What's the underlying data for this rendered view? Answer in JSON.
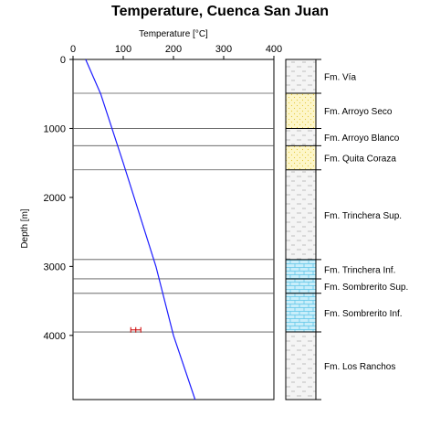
{
  "chart_data": {
    "type": "line",
    "title": "Temperature, Cuenca San Juan",
    "xlabel": "Temperature [°C]",
    "ylabel": "Depth [m]",
    "xlim": [
      0,
      400
    ],
    "ylim": [
      0,
      4930
    ],
    "x_ticks": [
      0,
      100,
      200,
      300,
      400
    ],
    "y_ticks": [
      0,
      1000,
      2000,
      3000,
      4000
    ],
    "series": [
      {
        "type": "line",
        "color": "#1c1cff",
        "points": [
          {
            "x": 25,
            "depth": 0
          },
          {
            "x": 55,
            "depth": 500
          },
          {
            "x": 100,
            "depth": 1500
          },
          {
            "x": 165,
            "depth": 3000
          },
          {
            "x": 200,
            "depth": 4000
          },
          {
            "x": 243,
            "depth": 4930
          }
        ]
      },
      {
        "type": "measurement",
        "color": "#cc0000",
        "points": [
          {
            "x": 115,
            "depth": 3920
          },
          {
            "x": 125,
            "depth": 3920
          },
          {
            "x": 135,
            "depth": 3920
          }
        ]
      }
    ],
    "formation_tops": [
      490,
      1000,
      1250,
      1600,
      2900,
      3180,
      3390,
      3950
    ],
    "formations": [
      {
        "name": "Fm. Vía",
        "top": 0,
        "bottom": 490,
        "fill": "shale"
      },
      {
        "name": "Fm. Arroyo Seco",
        "top": 490,
        "bottom": 1000,
        "fill": "sandstone"
      },
      {
        "name": "Fm. Arroyo Blanco",
        "top": 1000,
        "bottom": 1250,
        "fill": "shale"
      },
      {
        "name": "Fm. Quita Coraza",
        "top": 1250,
        "bottom": 1600,
        "fill": "sandstone"
      },
      {
        "name": "Fm. Trinchera Sup.",
        "top": 1600,
        "bottom": 2900,
        "fill": "shale"
      },
      {
        "name": "Fm. Trinchera Inf.",
        "top": 2900,
        "bottom": 3180,
        "fill": "limestone"
      },
      {
        "name": "Fm. Sombrerito Sup.",
        "top": 3180,
        "bottom": 3390,
        "fill": "limestone"
      },
      {
        "name": "Fm. Sombrerito Inf.",
        "top": 3390,
        "bottom": 3950,
        "fill": "limestone"
      },
      {
        "name": "Fm. Los Ranchos",
        "top": 3950,
        "bottom": 4930,
        "fill": "shale"
      }
    ],
    "grid": false
  }
}
